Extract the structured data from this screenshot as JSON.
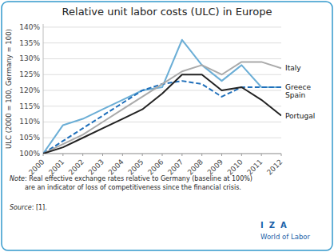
{
  "chart_data": {
    "type": "line",
    "title": "Relative unit labor costs (ULC) in Europe",
    "y_label": "ULC (2000 = 100, Germany = 100)",
    "x": [
      2000,
      2001,
      2002,
      2003,
      2004,
      2005,
      2006,
      2007,
      2008,
      2009,
      2010,
      2011,
      2012
    ],
    "series": [
      {
        "name": "Greece",
        "color": "#6baed6",
        "line_style": "solid",
        "values": [
          100,
          109,
          111,
          114,
          117,
          120,
          121,
          136,
          128,
          123,
          128,
          121,
          121
        ]
      },
      {
        "name": "Spain",
        "color": "#1f6fba",
        "line_style": "dashed",
        "values": [
          100,
          104,
          108,
          112,
          116,
          120,
          122,
          123,
          122,
          118,
          121,
          121,
          121
        ]
      },
      {
        "name": "Italy",
        "color": "#aaaaaa",
        "line_style": "solid",
        "values": [
          100,
          103,
          106,
          110,
          114,
          118,
          122,
          126,
          128,
          125,
          129,
          129,
          127
        ]
      },
      {
        "name": "Portugal",
        "color": "#222222",
        "line_style": "solid",
        "values": [
          100,
          102,
          105,
          108,
          111,
          114,
          119,
          125,
          125,
          120,
          121,
          117,
          112
        ]
      }
    ],
    "xlim": [
      2000,
      2012
    ],
    "xticks": [
      2000,
      2001,
      2002,
      2003,
      2004,
      2005,
      2006,
      2007,
      2008,
      2009,
      2010,
      2011,
      2012
    ],
    "ylim": [
      100,
      141
    ],
    "yticks": [
      {
        "value": 100,
        "label": "100%"
      },
      {
        "value": 105,
        "label": "105%"
      },
      {
        "value": 110,
        "label": "110%"
      },
      {
        "value": 115,
        "label": "115%"
      },
      {
        "value": 120,
        "label": "120%"
      },
      {
        "value": 125,
        "label": "125%"
      },
      {
        "value": 130,
        "label": "130%"
      },
      {
        "value": 135,
        "label": "135%"
      },
      {
        "value": 140,
        "label": "140%"
      }
    ],
    "grid": true,
    "annotations": [
      "Note",
      ": Real effective exchange rates relative to Germany (baseline at 100%)\nare an indicator of loss of competitiveness since the financial crisis.",
      "Source",
      ": [1].",
      "I  Z  A",
      "World of Labor"
    ]
  }
}
